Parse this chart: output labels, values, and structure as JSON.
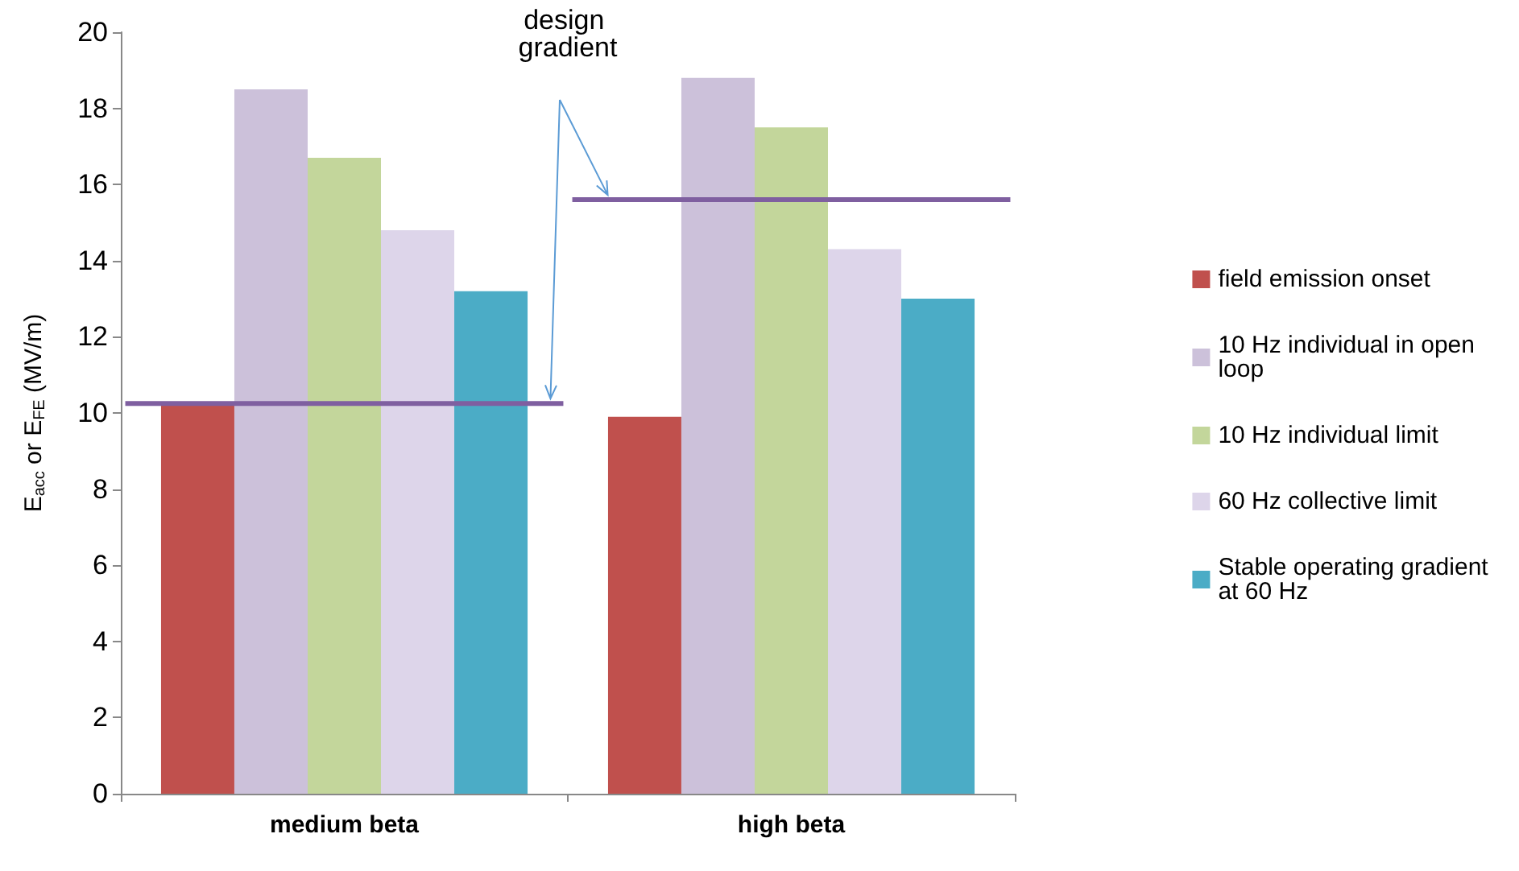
{
  "chart_data": {
    "type": "bar",
    "ylabel": "E$_{acc}$ or E$_{FE}$ (MV/m)",
    "categories": [
      "medium beta",
      "high beta"
    ],
    "series": [
      {
        "name": "field emission onset",
        "color": "#c0504d",
        "values": [
          10.2,
          9.9
        ]
      },
      {
        "name": "10 Hz individual in open loop",
        "color": "#ccc1da",
        "values": [
          18.5,
          18.8
        ]
      },
      {
        "name": "10 Hz individual limit",
        "color": "#c3d69b",
        "values": [
          16.7,
          17.5
        ]
      },
      {
        "name": "60 Hz collective limit",
        "color": "#ddd5ea",
        "values": [
          14.8,
          14.3
        ]
      },
      {
        "name": "Stable operating gradient at 60 Hz",
        "color": "#4bacc6",
        "values": [
          13.2,
          13.0
        ]
      }
    ],
    "ylim": [
      0,
      20
    ],
    "yticks": [
      0,
      2,
      4,
      6,
      8,
      10,
      12,
      14,
      16,
      18,
      20
    ],
    "ref_lines": [
      {
        "axis": "y",
        "value": 10.25,
        "color": "#7f5fa0"
      },
      {
        "axis": "y",
        "value": 15.6,
        "color": "#7f5fa0"
      }
    ],
    "annotations": [
      "design gradient"
    ],
    "legend": "right",
    "grid": false
  }
}
